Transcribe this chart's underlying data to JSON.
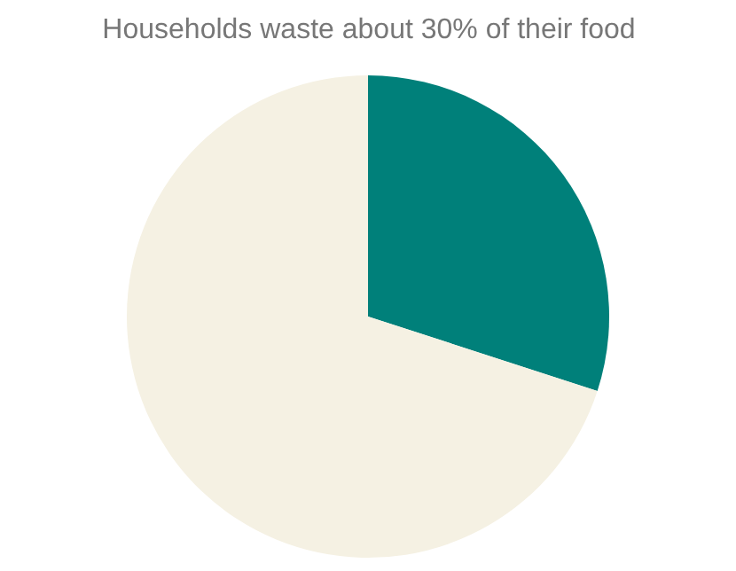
{
  "chart_data": {
    "type": "pie",
    "title": "Households waste about 30% of their food",
    "categories": [
      null,
      null
    ],
    "values": [
      30,
      70
    ],
    "colors": [
      "#00807a",
      "#f5f1e3"
    ]
  }
}
